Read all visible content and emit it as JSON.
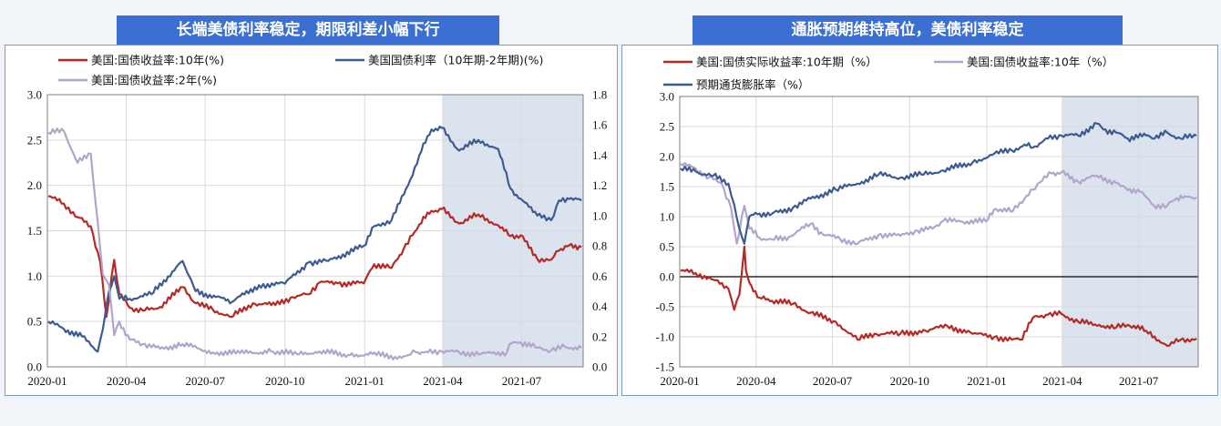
{
  "colors": {
    "title_bg": "#3b6fd1",
    "shade": "#dbe3ef",
    "red": "#b52a24",
    "navy": "#3d5b93",
    "lavender": "#b2a5cc"
  },
  "left": {
    "title": "长端美债利率稳定，期限利差小幅下行",
    "chart_data": {
      "type": "line",
      "x_ticks": [
        "2020-01",
        "2020-04",
        "2020-07",
        "2020-10",
        "2021-01",
        "2021-04",
        "2021-07"
      ],
      "x_range": [
        "2020-01-01",
        "2021-09-10"
      ],
      "y_left": {
        "range": [
          0,
          3.0
        ],
        "ticks": [
          "0.0",
          "0.5",
          "1.0",
          "1.5",
          "2.0",
          "2.5",
          "3.0"
        ]
      },
      "y_right": {
        "range": [
          0,
          1.8
        ],
        "ticks": [
          "0.0",
          "0.2",
          "0.4",
          "0.6",
          "0.8",
          "1.0",
          "1.2",
          "1.4",
          "1.6",
          "1.8"
        ]
      },
      "shaded_from": "2021-04-01",
      "series": [
        {
          "name": "美国:国债收益率:10年(%)",
          "axis": "left",
          "color": "red",
          "points": [
            [
              "2020-01-02",
              1.88
            ],
            [
              "2020-01-20",
              1.8
            ],
            [
              "2020-02-05",
              1.65
            ],
            [
              "2020-02-20",
              1.55
            ],
            [
              "2020-03-02",
              1.15
            ],
            [
              "2020-03-09",
              0.55
            ],
            [
              "2020-03-18",
              1.18
            ],
            [
              "2020-03-24",
              0.8
            ],
            [
              "2020-04-05",
              0.65
            ],
            [
              "2020-04-20",
              0.62
            ],
            [
              "2020-05-10",
              0.66
            ],
            [
              "2020-06-05",
              0.88
            ],
            [
              "2020-06-20",
              0.7
            ],
            [
              "2020-07-10",
              0.63
            ],
            [
              "2020-07-31",
              0.55
            ],
            [
              "2020-08-25",
              0.7
            ],
            [
              "2020-09-20",
              0.68
            ],
            [
              "2020-10-10",
              0.77
            ],
            [
              "2020-10-28",
              0.8
            ],
            [
              "2020-11-10",
              0.93
            ],
            [
              "2020-12-01",
              0.92
            ],
            [
              "2020-12-31",
              0.92
            ],
            [
              "2021-01-12",
              1.13
            ],
            [
              "2021-02-01",
              1.09
            ],
            [
              "2021-02-15",
              1.3
            ],
            [
              "2021-02-25",
              1.45
            ],
            [
              "2021-03-05",
              1.57
            ],
            [
              "2021-03-19",
              1.72
            ],
            [
              "2021-03-31",
              1.74
            ],
            [
              "2021-04-20",
              1.58
            ],
            [
              "2021-05-12",
              1.68
            ],
            [
              "2021-06-04",
              1.56
            ],
            [
              "2021-06-18",
              1.44
            ],
            [
              "2021-06-30",
              1.45
            ],
            [
              "2021-07-19",
              1.19
            ],
            [
              "2021-08-04",
              1.18
            ],
            [
              "2021-08-13",
              1.28
            ],
            [
              "2021-08-25",
              1.34
            ],
            [
              "2021-09-08",
              1.32
            ]
          ]
        },
        {
          "name": "美国国债利率（10年期-2年期)(%)",
          "axis": "right",
          "color": "navy",
          "points": [
            [
              "2020-01-02",
              0.3
            ],
            [
              "2020-01-20",
              0.25
            ],
            [
              "2020-02-10",
              0.2
            ],
            [
              "2020-02-28",
              0.1
            ],
            [
              "2020-03-05",
              0.25
            ],
            [
              "2020-03-12",
              0.5
            ],
            [
              "2020-03-18",
              0.6
            ],
            [
              "2020-03-24",
              0.45
            ],
            [
              "2020-04-05",
              0.45
            ],
            [
              "2020-04-30",
              0.48
            ],
            [
              "2020-06-05",
              0.7
            ],
            [
              "2020-06-20",
              0.5
            ],
            [
              "2020-08-01",
              0.43
            ],
            [
              "2020-09-01",
              0.54
            ],
            [
              "2020-10-01",
              0.55
            ],
            [
              "2020-10-28",
              0.69
            ],
            [
              "2020-11-20",
              0.7
            ],
            [
              "2020-12-31",
              0.8
            ],
            [
              "2021-01-12",
              0.93
            ],
            [
              "2021-02-01",
              0.97
            ],
            [
              "2021-02-20",
              1.2
            ],
            [
              "2021-03-05",
              1.4
            ],
            [
              "2021-03-19",
              1.57
            ],
            [
              "2021-03-31",
              1.58
            ],
            [
              "2021-04-20",
              1.43
            ],
            [
              "2021-05-12",
              1.5
            ],
            [
              "2021-06-04",
              1.44
            ],
            [
              "2021-06-18",
              1.18
            ],
            [
              "2021-07-19",
              1.0
            ],
            [
              "2021-08-04",
              0.97
            ],
            [
              "2021-08-13",
              1.1
            ],
            [
              "2021-08-25",
              1.11
            ],
            [
              "2021-09-08",
              1.1
            ]
          ]
        },
        {
          "name": "美国:国债收益率:2年(%)",
          "axis": "left",
          "color": "lavender",
          "points": [
            [
              "2020-01-02",
              2.58
            ],
            [
              "2020-01-20",
              2.6
            ],
            [
              "2020-02-05",
              2.25
            ],
            [
              "2020-02-20",
              2.35
            ],
            [
              "2020-02-28",
              1.6
            ],
            [
              "2020-03-05",
              1.02
            ],
            [
              "2020-03-12",
              0.9
            ],
            [
              "2020-03-18",
              0.35
            ],
            [
              "2020-03-24",
              0.5
            ],
            [
              "2020-04-05",
              0.3
            ],
            [
              "2020-04-20",
              0.25
            ],
            [
              "2020-05-10",
              0.2
            ],
            [
              "2020-06-05",
              0.25
            ],
            [
              "2020-07-10",
              0.16
            ],
            [
              "2020-08-10",
              0.15
            ],
            [
              "2020-09-15",
              0.17
            ],
            [
              "2020-10-15",
              0.14
            ],
            [
              "2020-11-10",
              0.17
            ],
            [
              "2020-12-15",
              0.13
            ],
            [
              "2021-01-10",
              0.14
            ],
            [
              "2021-02-05",
              0.11
            ],
            [
              "2021-02-20",
              0.13
            ],
            [
              "2021-03-01",
              0.16
            ],
            [
              "2021-03-15",
              0.16
            ],
            [
              "2021-03-31",
              0.17
            ],
            [
              "2021-04-20",
              0.16
            ],
            [
              "2021-05-15",
              0.14
            ],
            [
              "2021-06-14",
              0.16
            ],
            [
              "2021-06-17",
              0.25
            ],
            [
              "2021-06-30",
              0.27
            ],
            [
              "2021-07-19",
              0.21
            ],
            [
              "2021-08-04",
              0.18
            ],
            [
              "2021-08-20",
              0.22
            ],
            [
              "2021-09-08",
              0.21
            ]
          ]
        }
      ]
    }
  },
  "right": {
    "title": "通胀预期维持高位，美债利率稳定",
    "chart_data": {
      "type": "line",
      "x_ticks": [
        "2020-01",
        "2020-04",
        "2020-07",
        "2020-10",
        "2021-01",
        "2021-04",
        "2021-07"
      ],
      "x_range": [
        "2020-01-01",
        "2021-09-10"
      ],
      "y_left": {
        "range": [
          -1.5,
          3.0
        ],
        "ticks": [
          "-1.5",
          "-1.0",
          "-0.5",
          "0.0",
          "0.5",
          "1.0",
          "1.5",
          "2.0",
          "2.5",
          "3.0"
        ]
      },
      "zero_line": 0,
      "shaded_from": "2021-04-01",
      "series": [
        {
          "name": "美国:国债实际收益率:10年期（%）",
          "color": "red",
          "points": [
            [
              "2020-01-02",
              0.1
            ],
            [
              "2020-01-20",
              0.06
            ],
            [
              "2020-02-10",
              -0.05
            ],
            [
              "2020-02-28",
              -0.2
            ],
            [
              "2020-03-06",
              -0.55
            ],
            [
              "2020-03-12",
              -0.3
            ],
            [
              "2020-03-18",
              0.5
            ],
            [
              "2020-03-20",
              0.1
            ],
            [
              "2020-03-24",
              -0.1
            ],
            [
              "2020-04-05",
              -0.35
            ],
            [
              "2020-04-20",
              -0.4
            ],
            [
              "2020-05-15",
              -0.45
            ],
            [
              "2020-06-05",
              -0.6
            ],
            [
              "2020-07-05",
              -0.75
            ],
            [
              "2020-07-31",
              -1.05
            ],
            [
              "2020-08-20",
              -0.95
            ],
            [
              "2020-09-20",
              -0.95
            ],
            [
              "2020-10-20",
              -0.9
            ],
            [
              "2020-11-15",
              -0.82
            ],
            [
              "2020-12-15",
              -0.95
            ],
            [
              "2021-01-10",
              -1.0
            ],
            [
              "2021-01-31",
              -1.05
            ],
            [
              "2021-02-10",
              -1.05
            ],
            [
              "2021-02-25",
              -0.68
            ],
            [
              "2021-03-15",
              -0.63
            ],
            [
              "2021-03-31",
              -0.62
            ],
            [
              "2021-04-20",
              -0.75
            ],
            [
              "2021-05-15",
              -0.8
            ],
            [
              "2021-06-04",
              -0.85
            ],
            [
              "2021-06-18",
              -0.8
            ],
            [
              "2021-07-10",
              -0.9
            ],
            [
              "2021-08-04",
              -1.15
            ],
            [
              "2021-08-20",
              -1.05
            ],
            [
              "2021-09-08",
              -1.03
            ]
          ]
        },
        {
          "name": "美国:国债收益率:10年（%）",
          "color": "lavender",
          "points": [
            [
              "2020-01-02",
              1.88
            ],
            [
              "2020-01-20",
              1.8
            ],
            [
              "2020-02-05",
              1.65
            ],
            [
              "2020-02-20",
              1.55
            ],
            [
              "2020-03-02",
              1.15
            ],
            [
              "2020-03-09",
              0.55
            ],
            [
              "2020-03-18",
              1.18
            ],
            [
              "2020-03-24",
              0.8
            ],
            [
              "2020-04-05",
              0.65
            ],
            [
              "2020-04-20",
              0.62
            ],
            [
              "2020-05-10",
              0.66
            ],
            [
              "2020-06-05",
              0.88
            ],
            [
              "2020-06-20",
              0.7
            ],
            [
              "2020-07-10",
              0.63
            ],
            [
              "2020-07-31",
              0.55
            ],
            [
              "2020-08-25",
              0.7
            ],
            [
              "2020-09-20",
              0.68
            ],
            [
              "2020-10-10",
              0.77
            ],
            [
              "2020-10-28",
              0.8
            ],
            [
              "2020-11-10",
              0.93
            ],
            [
              "2020-12-01",
              0.92
            ],
            [
              "2020-12-31",
              0.92
            ],
            [
              "2021-01-12",
              1.13
            ],
            [
              "2021-02-01",
              1.09
            ],
            [
              "2021-02-15",
              1.3
            ],
            [
              "2021-02-25",
              1.45
            ],
            [
              "2021-03-05",
              1.57
            ],
            [
              "2021-03-19",
              1.72
            ],
            [
              "2021-03-31",
              1.74
            ],
            [
              "2021-04-20",
              1.58
            ],
            [
              "2021-05-12",
              1.68
            ],
            [
              "2021-06-04",
              1.56
            ],
            [
              "2021-06-18",
              1.44
            ],
            [
              "2021-06-30",
              1.45
            ],
            [
              "2021-07-19",
              1.19
            ],
            [
              "2021-08-04",
              1.18
            ],
            [
              "2021-08-13",
              1.28
            ],
            [
              "2021-08-25",
              1.34
            ],
            [
              "2021-09-08",
              1.32
            ]
          ]
        },
        {
          "name": "预期通货膨胀率（%）",
          "color": "navy",
          "points": [
            [
              "2020-01-02",
              1.8
            ],
            [
              "2020-01-20",
              1.75
            ],
            [
              "2020-02-10",
              1.68
            ],
            [
              "2020-02-28",
              1.55
            ],
            [
              "2020-03-06",
              1.2
            ],
            [
              "2020-03-12",
              0.8
            ],
            [
              "2020-03-18",
              0.55
            ],
            [
              "2020-03-24",
              1.0
            ],
            [
              "2020-04-05",
              1.05
            ],
            [
              "2020-04-20",
              1.05
            ],
            [
              "2020-05-15",
              1.15
            ],
            [
              "2020-06-05",
              1.3
            ],
            [
              "2020-07-05",
              1.45
            ],
            [
              "2020-07-31",
              1.55
            ],
            [
              "2020-08-25",
              1.7
            ],
            [
              "2020-09-20",
              1.65
            ],
            [
              "2020-10-15",
              1.7
            ],
            [
              "2020-11-10",
              1.77
            ],
            [
              "2020-12-15",
              1.9
            ],
            [
              "2021-01-10",
              2.05
            ],
            [
              "2021-01-31",
              2.1
            ],
            [
              "2021-02-15",
              2.2
            ],
            [
              "2021-02-25",
              2.15
            ],
            [
              "2021-03-15",
              2.3
            ],
            [
              "2021-03-31",
              2.35
            ],
            [
              "2021-04-20",
              2.35
            ],
            [
              "2021-05-12",
              2.55
            ],
            [
              "2021-05-20",
              2.45
            ],
            [
              "2021-06-04",
              2.4
            ],
            [
              "2021-06-18",
              2.3
            ],
            [
              "2021-07-10",
              2.35
            ],
            [
              "2021-07-20",
              2.3
            ],
            [
              "2021-08-04",
              2.4
            ],
            [
              "2021-08-20",
              2.3
            ],
            [
              "2021-09-08",
              2.35
            ]
          ]
        }
      ]
    }
  }
}
